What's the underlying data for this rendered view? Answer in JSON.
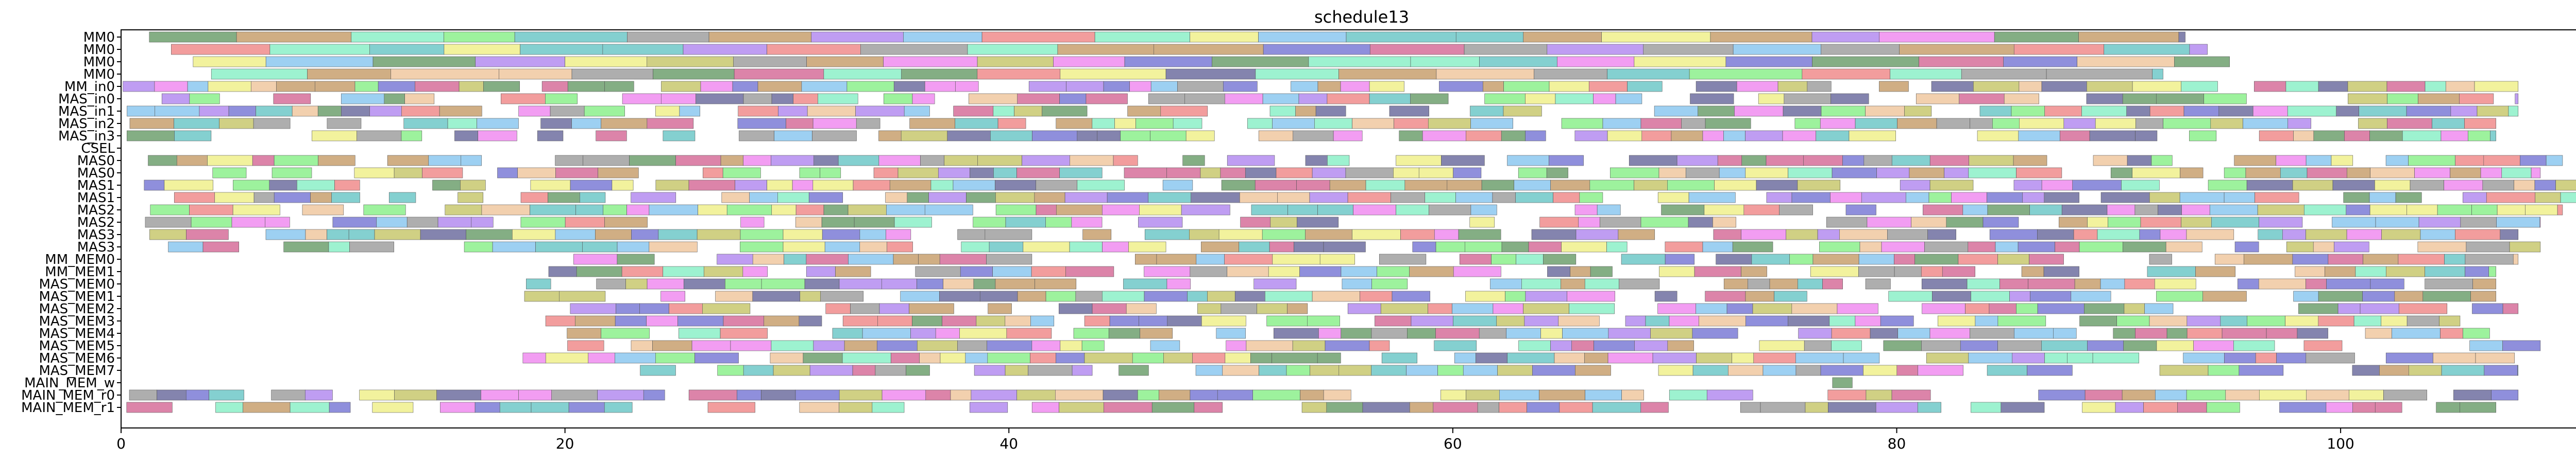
{
  "chart_data": {
    "type": "gantt",
    "title": "schedule13",
    "xlabel": "",
    "ylabel": "",
    "xlim": [
      0,
      111
    ],
    "x_ticks": [
      0,
      20,
      40,
      60,
      80,
      100
    ],
    "grid": false,
    "legend": "none",
    "rows": [
      "MM0",
      "MM0",
      "MM0",
      "MM0",
      "MM_in0",
      "MAS_in0",
      "MAS_in1",
      "MAS_in2",
      "MAS_in3",
      "CSEL",
      "MAS0",
      "MAS0",
      "MAS1",
      "MAS1",
      "MAS2",
      "MAS2",
      "MAS3",
      "MAS3",
      "MM_MEM0",
      "MM_MEM1",
      "MAS_MEM0",
      "MAS_MEM1",
      "MAS_MEM2",
      "MAS_MEM3",
      "MAS_MEM4",
      "MAS_MEM5",
      "MAS_MEM6",
      "MAS_MEM7",
      "MAIN_MEM_w",
      "MAIN_MEM_r0",
      "MAIN_MEM_r1"
    ],
    "row_spans": [
      [
        1,
        93
      ],
      [
        2,
        94
      ],
      [
        3,
        95
      ],
      [
        4,
        92
      ],
      [
        0,
        108
      ],
      [
        0,
        108
      ],
      [
        0,
        108
      ],
      [
        0,
        107
      ],
      [
        0,
        107
      ],
      [],
      [
        1,
        110
      ],
      [
        2,
        109
      ],
      [
        1,
        111
      ],
      [
        2,
        111
      ],
      [
        1,
        110
      ],
      [
        1,
        109
      ],
      [
        1,
        108
      ],
      [
        2,
        109
      ],
      [
        20,
        108
      ],
      [
        19,
        107
      ],
      [
        18,
        107
      ],
      [
        18,
        107
      ],
      [
        19,
        108
      ],
      [
        19,
        108
      ],
      [
        20,
        107
      ],
      [
        20,
        109
      ],
      [
        18,
        109
      ],
      [
        20,
        108
      ],
      [
        77,
        78
      ],
      [
        0,
        108
      ],
      [
        0,
        107
      ]
    ],
    "palette": [
      "#7b7bd6",
      "#8cf08c",
      "#f08cf0",
      "#c8a06e",
      "#6ec8c8",
      "#f0f08c",
      "#b48cf0",
      "#6ea06e",
      "#f08c8c",
      "#8cc8f0",
      "#a0a0a0",
      "#c8c86e",
      "#6e6ea0",
      "#f0c8a0",
      "#8cf0c8",
      "#d66e9a"
    ]
  }
}
